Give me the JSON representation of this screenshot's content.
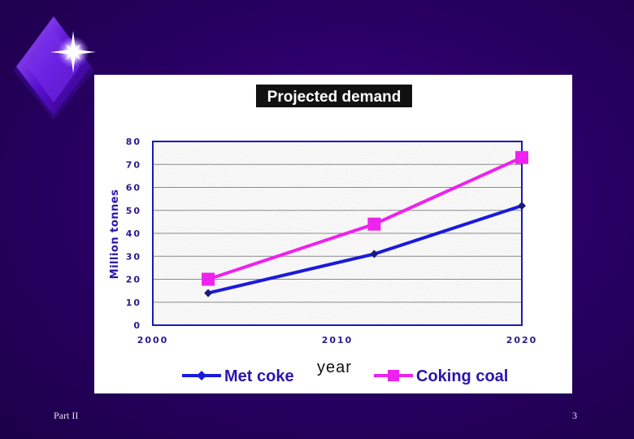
{
  "slide": {
    "footer_left": "Part II",
    "page_number": "3"
  },
  "colors": {
    "background": "#2a0068",
    "met_coke": "#1a1adc",
    "coking_coal": "#ee22ee",
    "axis": "#1a1ab8"
  },
  "chart_data": {
    "type": "line",
    "title": "Projected demand",
    "xlabel": "year",
    "ylabel": "Million tonnes",
    "xlim": [
      2000,
      2020
    ],
    "ylim": [
      0,
      80
    ],
    "x_ticks": [
      "2000",
      "2010",
      "2020"
    ],
    "y_ticks": [
      "0",
      "10",
      "20",
      "30",
      "40",
      "50",
      "60",
      "70",
      "80"
    ],
    "grid": true,
    "legend_position": "bottom",
    "series": [
      {
        "name": "Met coke",
        "marker": "diamond",
        "color": "#1a1adc",
        "points": [
          {
            "x": 2003,
            "y": 14
          },
          {
            "x": 2012,
            "y": 31
          },
          {
            "x": 2020,
            "y": 52
          }
        ]
      },
      {
        "name": "Coking coal",
        "marker": "square",
        "color": "#ee22ee",
        "points": [
          {
            "x": 2003,
            "y": 20
          },
          {
            "x": 2012,
            "y": 44
          },
          {
            "x": 2020,
            "y": 73
          }
        ]
      }
    ]
  }
}
